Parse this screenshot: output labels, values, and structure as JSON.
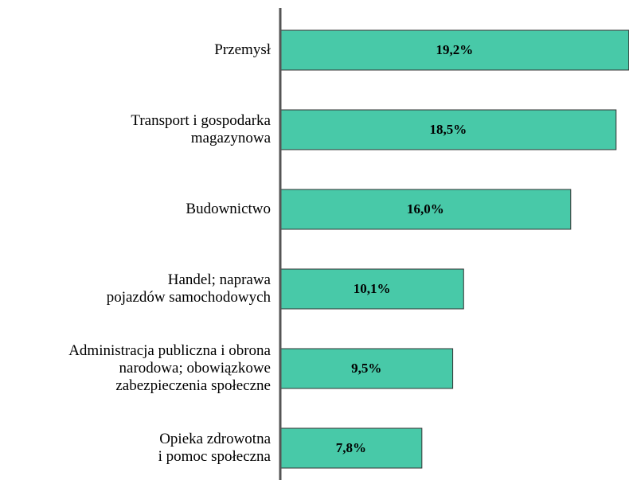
{
  "chart_data": {
    "type": "bar",
    "orientation": "horizontal",
    "categories": [
      "Przemysł",
      "Transport i gospodarka\nmagazynowa",
      "Budownictwo",
      "Handel; naprawa\npojazdów samochodowych",
      "Administracja publiczna i obrona\nnarodowa; obowiązkowe\nzabezpieczenia społeczne",
      "Opieka zdrowotna\ni pomoc społeczna"
    ],
    "values": [
      19.2,
      18.5,
      16.0,
      10.1,
      9.5,
      7.8
    ],
    "value_labels": [
      "19,2%",
      "18,5%",
      "16,0%",
      "10,1%",
      "9,5%",
      "7,8%"
    ],
    "color": "#48c9a8"
  }
}
